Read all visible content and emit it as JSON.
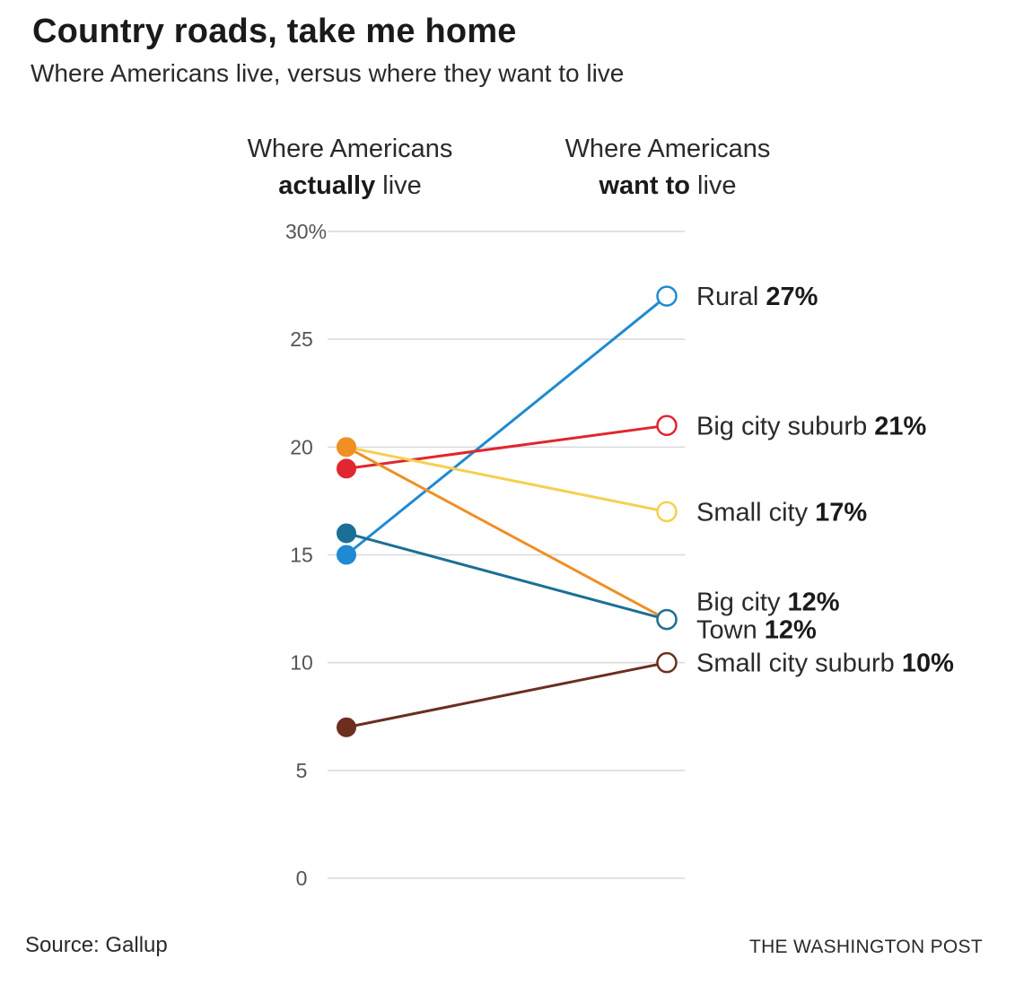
{
  "header": {
    "title": "Country roads, take me home",
    "subtitle": "Where Americans live, versus where they want to live"
  },
  "columns": {
    "left": {
      "line1": "Where Americans",
      "bold": "actually",
      "rest": " live"
    },
    "right": {
      "line1": "Where Americans",
      "bold": "want to",
      "rest": " live"
    }
  },
  "chart_data": {
    "type": "line",
    "x": [
      "Where Americans actually live",
      "Where Americans want to live"
    ],
    "ylim": [
      0,
      30
    ],
    "yticks": [
      0,
      5,
      10,
      15,
      20,
      25,
      30
    ],
    "ytick_labels": [
      "0",
      "5",
      "10",
      "15",
      "20",
      "25",
      "30%"
    ],
    "grid": true,
    "series": [
      {
        "name": "Rural",
        "values": [
          15,
          27
        ],
        "label": "27%",
        "color": "#1f8ad3"
      },
      {
        "name": "Big city suburb",
        "values": [
          19,
          21
        ],
        "label": "21%",
        "color": "#e0262e"
      },
      {
        "name": "Small city",
        "values": [
          20,
          17
        ],
        "label": "17%",
        "color": "#f5d04f"
      },
      {
        "name": "Big city",
        "values": [
          20,
          12
        ],
        "label": "12%",
        "color": "#ef8f25"
      },
      {
        "name": "Town",
        "values": [
          16,
          12
        ],
        "label": "12%",
        "color": "#1b6f97"
      },
      {
        "name": "Small city suburb",
        "values": [
          7,
          10
        ],
        "label": "10%",
        "color": "#6b2e1f"
      }
    ]
  },
  "footer": {
    "source": "Source: Gallup",
    "credit": "THE WASHINGTON POST"
  }
}
